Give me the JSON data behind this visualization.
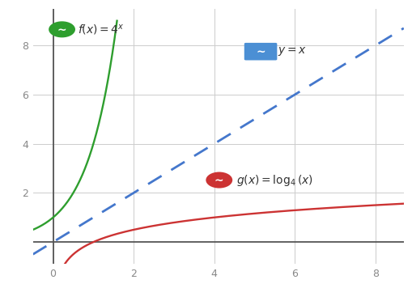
{
  "bg_color": "#ffffff",
  "grid_color": "#cccccc",
  "xlim": [
    -0.5,
    8.7
  ],
  "ylim": [
    -0.9,
    9.5
  ],
  "xticks": [
    0,
    2,
    4,
    6,
    8
  ],
  "yticks": [
    2,
    4,
    6,
    8
  ],
  "f_color": "#2e9e2e",
  "g_color": "#cc3333",
  "line_color": "#4477cc",
  "line_icon_bg": "#4b8fd4",
  "f_label": "$f(x) = 4^x$",
  "g_label": "$g(x) = \\log_4(x)$",
  "line_label": "$y = x$",
  "tick_color": "#888888",
  "axis_color": "#555555"
}
